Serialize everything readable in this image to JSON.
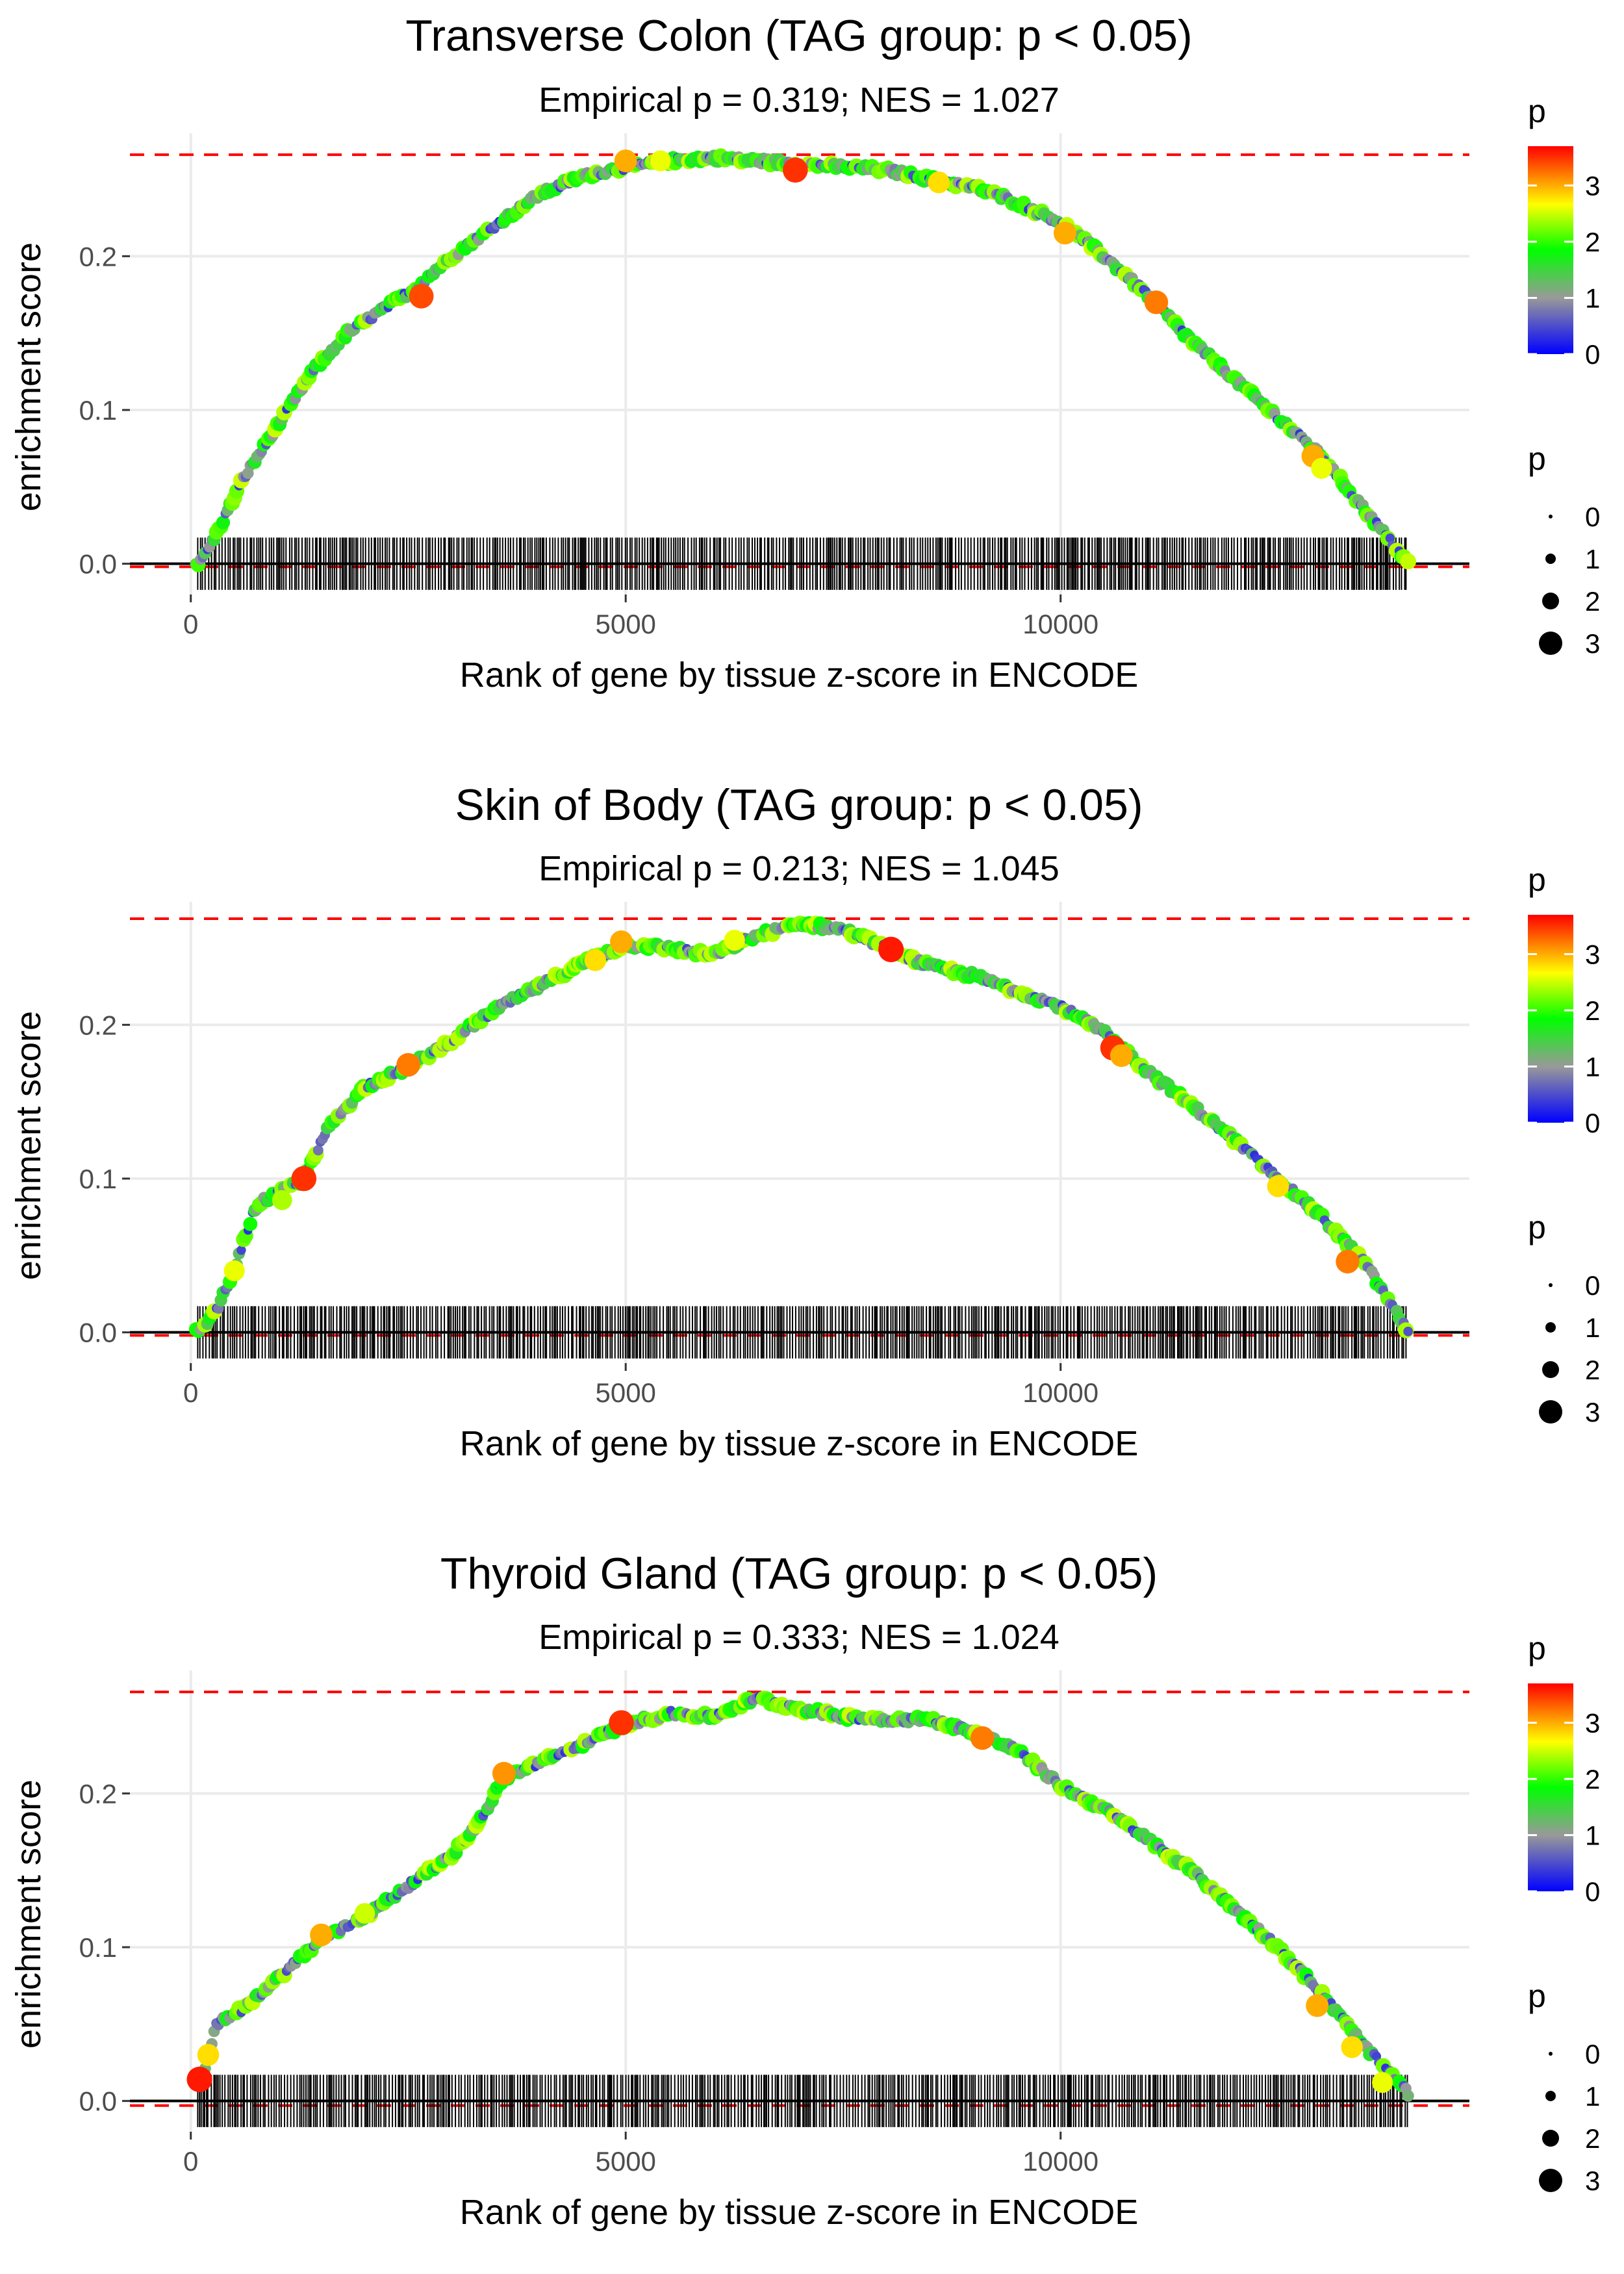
{
  "colors": {
    "grid": "#ebebeb",
    "reference_line": "#ff0000",
    "zero_line": "#000000",
    "rug": "#000000",
    "tick_label": "#4d4d4d",
    "gradient": [
      "#0000ff",
      "#999999",
      "#00ff00",
      "#ffff00",
      "#ff0000"
    ]
  },
  "chart_data": [
    {
      "type": "line",
      "title": "Transverse Colon (TAG group: p < 0.05)",
      "subtitle": "Empirical p = 0.319; NES = 1.027",
      "xlabel": "Rank of gene by tissue z-score in ENCODE",
      "ylabel": "enrichment score",
      "xlim": [
        -700,
        14700
      ],
      "ylim": [
        -0.02,
        0.28
      ],
      "x_ticks": [
        0,
        5000,
        10000
      ],
      "x_tick_labels": [
        "0",
        "5000",
        "10000"
      ],
      "y_ticks": [
        0,
        0.1,
        0.2
      ],
      "y_tick_labels": [
        "0.0",
        "0.1",
        "0.2"
      ],
      "max_es": 0.266,
      "min_es": -0.002,
      "n_genes": 14000,
      "curve": [
        [
          0,
          0
        ],
        [
          100,
          0
        ],
        [
          300,
          0.02
        ],
        [
          600,
          0.055
        ],
        [
          1000,
          0.09
        ],
        [
          1400,
          0.125
        ],
        [
          1800,
          0.15
        ],
        [
          2200,
          0.165
        ],
        [
          2600,
          0.18
        ],
        [
          3000,
          0.2
        ],
        [
          3500,
          0.22
        ],
        [
          4000,
          0.24
        ],
        [
          4500,
          0.252
        ],
        [
          5000,
          0.258
        ],
        [
          5500,
          0.262
        ],
        [
          6000,
          0.264
        ],
        [
          6500,
          0.262
        ],
        [
          7000,
          0.26
        ],
        [
          7500,
          0.258
        ],
        [
          8000,
          0.256
        ],
        [
          8500,
          0.25
        ],
        [
          9000,
          0.245
        ],
        [
          9500,
          0.235
        ],
        [
          10000,
          0.222
        ],
        [
          10500,
          0.2
        ],
        [
          11000,
          0.175
        ],
        [
          11500,
          0.145
        ],
        [
          12000,
          0.12
        ],
        [
          12500,
          0.095
        ],
        [
          13000,
          0.07
        ],
        [
          13500,
          0.035
        ],
        [
          14000,
          0
        ]
      ],
      "highlights": [
        [
          2650,
          0.174,
          3.4
        ],
        [
          6950,
          0.256,
          3.5
        ],
        [
          5000,
          0.262,
          3.0
        ],
        [
          8600,
          0.248,
          2.8
        ],
        [
          10050,
          0.215,
          3.0
        ],
        [
          11100,
          0.17,
          3.2
        ],
        [
          12900,
          0.07,
          3.0
        ],
        [
          13000,
          0.062,
          2.6
        ],
        [
          5400,
          0.262,
          2.6
        ]
      ],
      "legend_color_title": "p",
      "legend_color_ticks": [
        "0",
        "1",
        "2",
        "3"
      ],
      "legend_size_title": "p",
      "legend_size_labels": [
        "0",
        "1",
        "2",
        "3"
      ]
    },
    {
      "type": "line",
      "title": "Skin of Body (TAG group: p < 0.05)",
      "subtitle": "Empirical p = 0.213; NES = 1.045",
      "xlabel": "Rank of gene by tissue z-score in ENCODE",
      "ylabel": "enrichment score",
      "xlim": [
        -700,
        14700
      ],
      "ylim": [
        -0.02,
        0.28
      ],
      "x_ticks": [
        0,
        5000,
        10000
      ],
      "x_tick_labels": [
        "0",
        "5000",
        "10000"
      ],
      "y_ticks": [
        0,
        0.1,
        0.2
      ],
      "y_tick_labels": [
        "0.0",
        "0.1",
        "0.2"
      ],
      "max_es": 0.269,
      "min_es": -0.002,
      "n_genes": 14000,
      "curve": [
        [
          0,
          0
        ],
        [
          100,
          0
        ],
        [
          300,
          0.015
        ],
        [
          500,
          0.04
        ],
        [
          700,
          0.075
        ],
        [
          800,
          0.085
        ],
        [
          1000,
          0.09
        ],
        [
          1300,
          0.1
        ],
        [
          1600,
          0.135
        ],
        [
          2000,
          0.16
        ],
        [
          2500,
          0.172
        ],
        [
          3000,
          0.19
        ],
        [
          3500,
          0.21
        ],
        [
          4000,
          0.225
        ],
        [
          4500,
          0.24
        ],
        [
          5000,
          0.252
        ],
        [
          5500,
          0.25
        ],
        [
          6000,
          0.245
        ],
        [
          6500,
          0.258
        ],
        [
          7000,
          0.266
        ],
        [
          7500,
          0.262
        ],
        [
          8000,
          0.25
        ],
        [
          8500,
          0.238
        ],
        [
          9000,
          0.232
        ],
        [
          9500,
          0.222
        ],
        [
          10000,
          0.212
        ],
        [
          10500,
          0.195
        ],
        [
          11000,
          0.17
        ],
        [
          11500,
          0.148
        ],
        [
          12000,
          0.125
        ],
        [
          12500,
          0.1
        ],
        [
          13000,
          0.075
        ],
        [
          13500,
          0.045
        ],
        [
          14000,
          0
        ]
      ],
      "highlights": [
        [
          1300,
          0.1,
          3.5
        ],
        [
          2500,
          0.174,
          3.2
        ],
        [
          4650,
          0.242,
          2.8
        ],
        [
          4950,
          0.254,
          3.0
        ],
        [
          8050,
          0.249,
          3.6
        ],
        [
          10600,
          0.185,
          3.5
        ],
        [
          10700,
          0.18,
          3.0
        ],
        [
          12500,
          0.095,
          2.8
        ],
        [
          13300,
          0.046,
          3.2
        ],
        [
          500,
          0.04,
          2.6
        ],
        [
          1050,
          0.086,
          2.4
        ],
        [
          6250,
          0.255,
          2.6
        ]
      ],
      "legend_color_title": "p",
      "legend_color_ticks": [
        "0",
        "1",
        "2",
        "3"
      ],
      "legend_size_title": "p",
      "legend_size_labels": [
        "0",
        "1",
        "2",
        "3"
      ]
    },
    {
      "type": "line",
      "title": "Thyroid Gland (TAG group: p < 0.05)",
      "subtitle": "Empirical p = 0.333; NES = 1.024",
      "xlabel": "Rank of gene by tissue z-score in ENCODE",
      "ylabel": "enrichment score",
      "xlim": [
        -700,
        14700
      ],
      "ylim": [
        -0.02,
        0.28
      ],
      "x_ticks": [
        0,
        5000,
        10000
      ],
      "x_tick_labels": [
        "0",
        "5000",
        "10000"
      ],
      "y_ticks": [
        0,
        0.1,
        0.2
      ],
      "y_tick_labels": [
        "0.0",
        "0.1",
        "0.2"
      ],
      "max_es": 0.266,
      "min_es": -0.003,
      "n_genes": 14000,
      "curve": [
        [
          0,
          0.012
        ],
        [
          150,
          0.02
        ],
        [
          300,
          0.05
        ],
        [
          600,
          0.06
        ],
        [
          1000,
          0.08
        ],
        [
          1500,
          0.105
        ],
        [
          2000,
          0.12
        ],
        [
          2500,
          0.14
        ],
        [
          3000,
          0.16
        ],
        [
          3300,
          0.18
        ],
        [
          3600,
          0.21
        ],
        [
          4000,
          0.22
        ],
        [
          4500,
          0.232
        ],
        [
          5000,
          0.245
        ],
        [
          5500,
          0.252
        ],
        [
          6000,
          0.25
        ],
        [
          6500,
          0.262
        ],
        [
          7000,
          0.255
        ],
        [
          7500,
          0.25
        ],
        [
          8000,
          0.248
        ],
        [
          8500,
          0.248
        ],
        [
          9000,
          0.24
        ],
        [
          9500,
          0.228
        ],
        [
          10000,
          0.205
        ],
        [
          10500,
          0.19
        ],
        [
          11000,
          0.17
        ],
        [
          11500,
          0.15
        ],
        [
          12000,
          0.125
        ],
        [
          12500,
          0.1
        ],
        [
          13000,
          0.07
        ],
        [
          13500,
          0.035
        ],
        [
          14000,
          0.005
        ]
      ],
      "highlights": [
        [
          100,
          0.014,
          3.6
        ],
        [
          200,
          0.03,
          2.8
        ],
        [
          1500,
          0.108,
          3.0
        ],
        [
          3600,
          0.213,
          3.1
        ],
        [
          4950,
          0.246,
          3.5
        ],
        [
          9100,
          0.236,
          3.2
        ],
        [
          12950,
          0.062,
          3.0
        ],
        [
          13350,
          0.035,
          2.8
        ],
        [
          13700,
          0.012,
          2.6
        ],
        [
          2000,
          0.122,
          2.5
        ]
      ],
      "legend_color_title": "p",
      "legend_color_ticks": [
        "0",
        "1",
        "2",
        "3"
      ],
      "legend_size_title": "p",
      "legend_size_labels": [
        "0",
        "1",
        "2",
        "3"
      ]
    }
  ]
}
